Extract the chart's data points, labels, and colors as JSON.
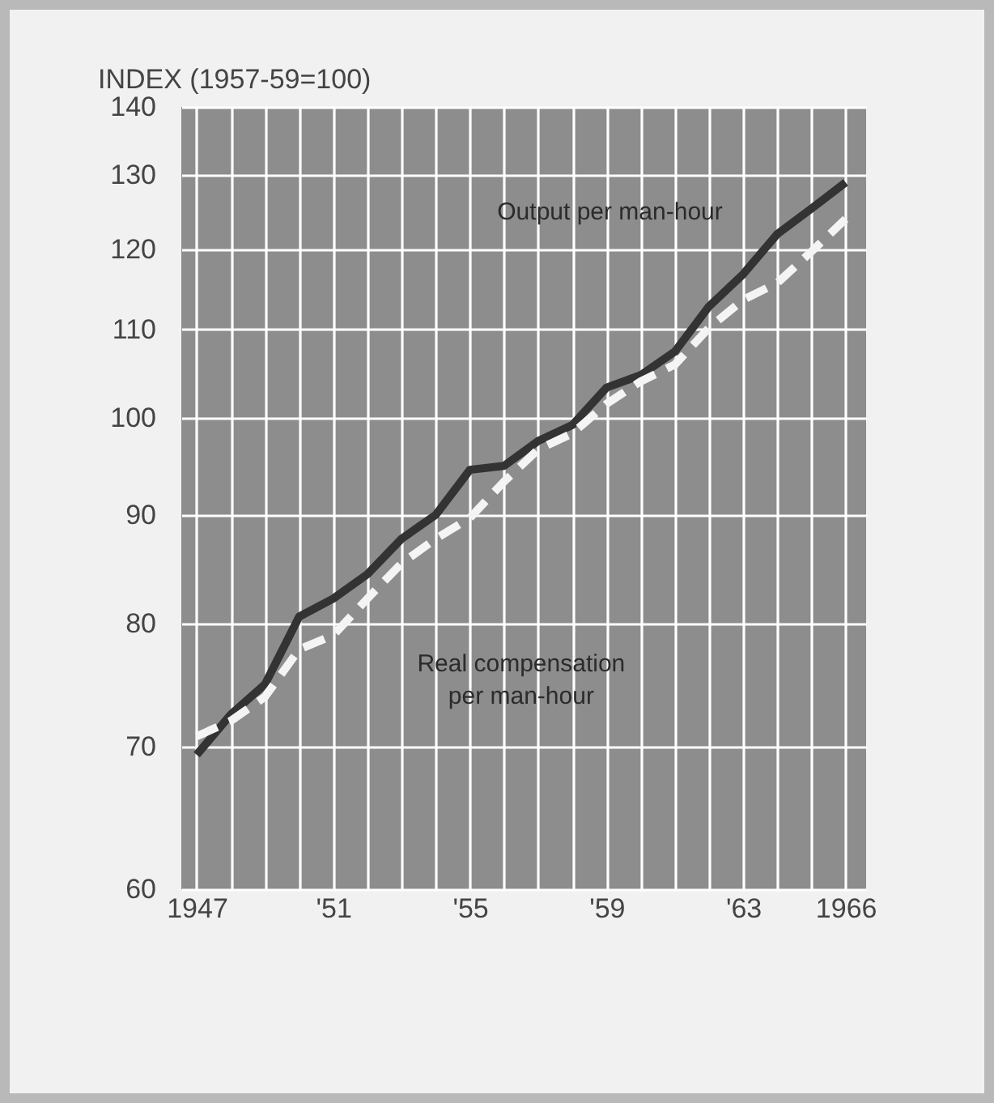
{
  "chart_data": {
    "type": "line",
    "ylabel": "INDEX (1957-59=100)",
    "x": [
      1947,
      1948,
      1949,
      1950,
      1951,
      1952,
      1953,
      1954,
      1955,
      1956,
      1957,
      1958,
      1959,
      1960,
      1961,
      1962,
      1963,
      1964,
      1965,
      1966
    ],
    "series": [
      {
        "name": "Output per man-hour",
        "color": "#333333",
        "line_style": "solid",
        "values": [
          69.4,
          72.5,
          74.9,
          80.6,
          82.2,
          84.4,
          87.7,
          90.0,
          94.5,
          94.9,
          97.5,
          99.2,
          103.3,
          104.7,
          107.4,
          112.8,
          116.8,
          122.0,
          125.4,
          129.0
        ]
      },
      {
        "name": "Real compensation\nper man-hour",
        "color": "#f4f4f4",
        "line_style": "dashed",
        "values": [
          70.8,
          72.0,
          73.9,
          77.8,
          79.0,
          82.2,
          85.4,
          87.7,
          89.7,
          93.3,
          96.6,
          98.3,
          101.5,
          104.0,
          105.9,
          110.2,
          113.6,
          115.7,
          119.7,
          124.0
        ]
      }
    ],
    "log": "y",
    "xlim": [
      1946.55,
      1966.6
    ],
    "xticks": [
      {
        "value": 1947,
        "label": "1947"
      },
      {
        "value": 1948,
        "label": null
      },
      {
        "value": 1949,
        "label": null
      },
      {
        "value": 1950,
        "label": null
      },
      {
        "value": 1951,
        "label": "'51"
      },
      {
        "value": 1952,
        "label": null
      },
      {
        "value": 1953,
        "label": null
      },
      {
        "value": 1954,
        "label": null
      },
      {
        "value": 1955,
        "label": "'55"
      },
      {
        "value": 1956,
        "label": null
      },
      {
        "value": 1957,
        "label": null
      },
      {
        "value": 1958,
        "label": null
      },
      {
        "value": 1959,
        "label": "'59"
      },
      {
        "value": 1960,
        "label": null
      },
      {
        "value": 1961,
        "label": null
      },
      {
        "value": 1962,
        "label": null
      },
      {
        "value": 1963,
        "label": "'63"
      },
      {
        "value": 1964,
        "label": null
      },
      {
        "value": 1965,
        "label": null
      },
      {
        "value": 1966,
        "label": "1966"
      }
    ],
    "ylim": [
      60,
      140
    ],
    "yticks": [
      60,
      70,
      80,
      90,
      100,
      110,
      120,
      130,
      140
    ],
    "grid": true,
    "legend": false
  }
}
